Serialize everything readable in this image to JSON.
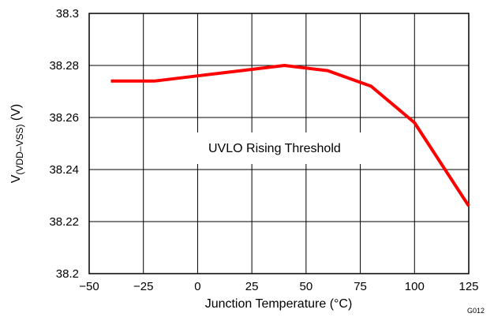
{
  "chart_data": {
    "type": "line",
    "xlabel": "Junction Temperature (°C)",
    "ylabel_main": "V",
    "ylabel_sub": "(VDD–VSS)",
    "ylabel_unit": " (V)",
    "xlim": [
      -50,
      125
    ],
    "ylim": [
      38.2,
      38.3
    ],
    "x_ticks": [
      "−50",
      "−25",
      "0",
      "25",
      "50",
      "75",
      "100",
      "125"
    ],
    "y_ticks": [
      "38.2",
      "38.22",
      "38.24",
      "38.26",
      "38.28",
      "38.3"
    ],
    "grid": true,
    "series": [
      {
        "name": "UVLO Rising Threshold",
        "color": "#ff0000",
        "x": [
          -40,
          -20,
          0,
          20,
          40,
          60,
          80,
          100,
          125
        ],
        "y": [
          38.274,
          38.274,
          38.276,
          38.278,
          38.28,
          38.278,
          38.272,
          38.258,
          38.226
        ]
      }
    ],
    "annotation": "UVLO Rising Threshold",
    "figure_code": "G012"
  }
}
